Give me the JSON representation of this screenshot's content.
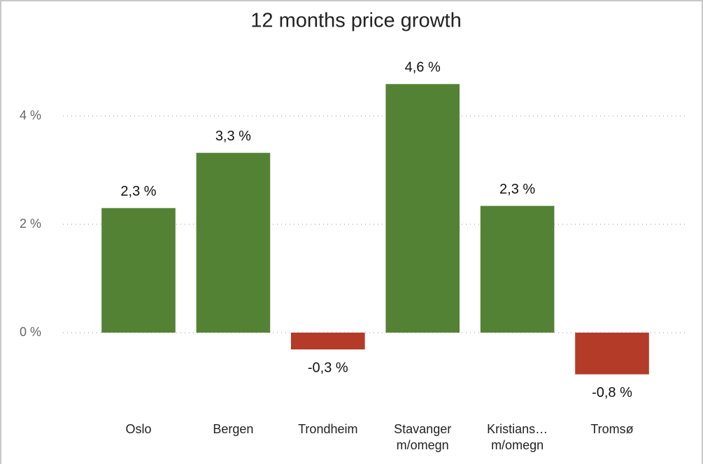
{
  "chart_data": {
    "type": "bar",
    "title": "12 months price growth",
    "categories": [
      "Oslo",
      "Bergen",
      "Trondheim",
      "Stavanger m/omegn",
      "Kristians… m/omegn",
      "Tromsø"
    ],
    "values": [
      2.3,
      3.32,
      -0.31,
      4.59,
      2.34,
      -0.77
    ],
    "value_labels": [
      "2,3 %",
      "3,3 %",
      "-0,3 %",
      "4,6 %",
      "2,3 %",
      "-0,8 %"
    ],
    "color_positive": "#548235",
    "color_negative": "#b43b28",
    "ylim": [
      -1,
      5
    ],
    "yticks": [
      {
        "value": 0,
        "label": "0 %"
      },
      {
        "value": 2,
        "label": "2 %"
      },
      {
        "value": 4,
        "label": "4 %"
      }
    ],
    "grid": true
  }
}
